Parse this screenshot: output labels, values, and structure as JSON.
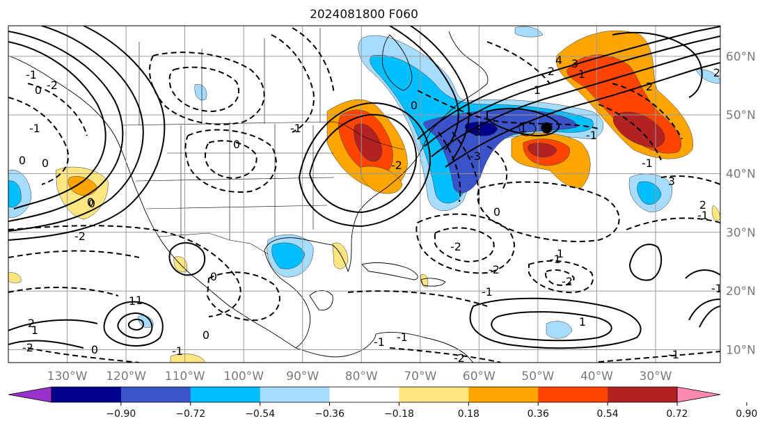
{
  "title": "2024081800 F060",
  "map": {
    "lon_range": [
      -140,
      -19
    ],
    "lat_range": [
      7.8,
      65.2
    ],
    "lon_ticks": [
      "130°W",
      "120°W",
      "110°W",
      "100°W",
      "90°W",
      "80°W",
      "70°W",
      "60°W",
      "50°W",
      "40°W",
      "30°W"
    ],
    "lat_ticks": [
      "60°N",
      "50°N",
      "40°N",
      "30°N",
      "20°N",
      "10°N"
    ],
    "gridlines": true,
    "marker": {
      "lon": -48.5,
      "lat": 47.8,
      "color": "#000000"
    }
  },
  "colorbar": {
    "orientation": "horizontal",
    "extend": "both",
    "ticks": [
      "−0.90",
      "−0.72",
      "−0.54",
      "−0.36",
      "−0.18",
      "0.18",
      "0.36",
      "0.54",
      "0.72",
      "0.90"
    ],
    "colors": [
      "#9932cc",
      "#00008b",
      "#3a53c9",
      "#00bfff",
      "#a6dcff",
      "#ffffff",
      "#ffe680",
      "#ffa500",
      "#ff4500",
      "#b22222",
      "#ff88b0"
    ]
  },
  "contour_labels": [
    "4",
    "3",
    "2",
    "2",
    "1",
    "1",
    "0",
    "0",
    "-1",
    "-1",
    "-2",
    "-2",
    "0",
    "0",
    "1",
    "0",
    "-2",
    "-1",
    "-1",
    "1",
    "1",
    "-1",
    "-3",
    "-3",
    "-1",
    "0",
    "-2",
    "-1",
    "-2",
    "0",
    "0",
    "0",
    "-1",
    "2",
    "3",
    "2",
    "1",
    "0",
    "-2",
    "-1",
    "-2",
    "2",
    "0",
    "-2",
    "-1",
    "-1",
    "1",
    "-1",
    "-1",
    "1"
  ]
}
